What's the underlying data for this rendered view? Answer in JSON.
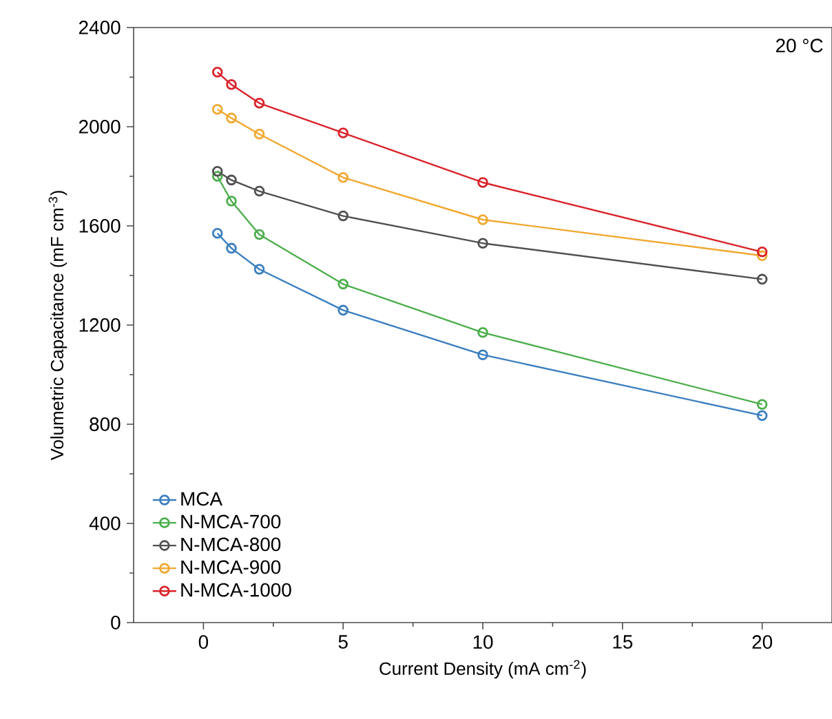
{
  "chart_data": {
    "type": "line",
    "xlabel": "Current Density (mA cm$^{-2}$)",
    "ylabel": "Volumetric Capacitance (mF cm$^{-3}$)",
    "x": [
      0.5,
      1,
      2,
      5,
      10,
      20
    ],
    "series": [
      {
        "name": "MCA",
        "color": "#3a7ebf",
        "values": [
          1570,
          1510,
          1425,
          1260,
          1080,
          835
        ]
      },
      {
        "name": "N-MCA-700",
        "color": "#4cae4c",
        "values": [
          1800,
          1700,
          1565,
          1365,
          1170,
          880
        ]
      },
      {
        "name": "N-MCA-800",
        "color": "#505050",
        "values": [
          1820,
          1785,
          1740,
          1640,
          1530,
          1385
        ]
      },
      {
        "name": "N-MCA-900",
        "color": "#f0a830",
        "values": [
          2070,
          2035,
          1970,
          1795,
          1625,
          1480
        ]
      },
      {
        "name": "N-MCA-1000",
        "color": "#d9232a",
        "values": [
          2220,
          2170,
          2095,
          1975,
          1775,
          1495
        ]
      }
    ],
    "xlim": [
      -2.5,
      22.5
    ],
    "ylim": [
      0,
      2400
    ],
    "xticks": [
      0,
      5,
      10,
      15,
      20
    ],
    "yticks": [
      0,
      400,
      800,
      1200,
      1600,
      2000,
      2400
    ],
    "annotations": [
      "20 °C"
    ],
    "legend": "bottom left",
    "marker": "circle",
    "line_style": "solid",
    "grid": false
  }
}
